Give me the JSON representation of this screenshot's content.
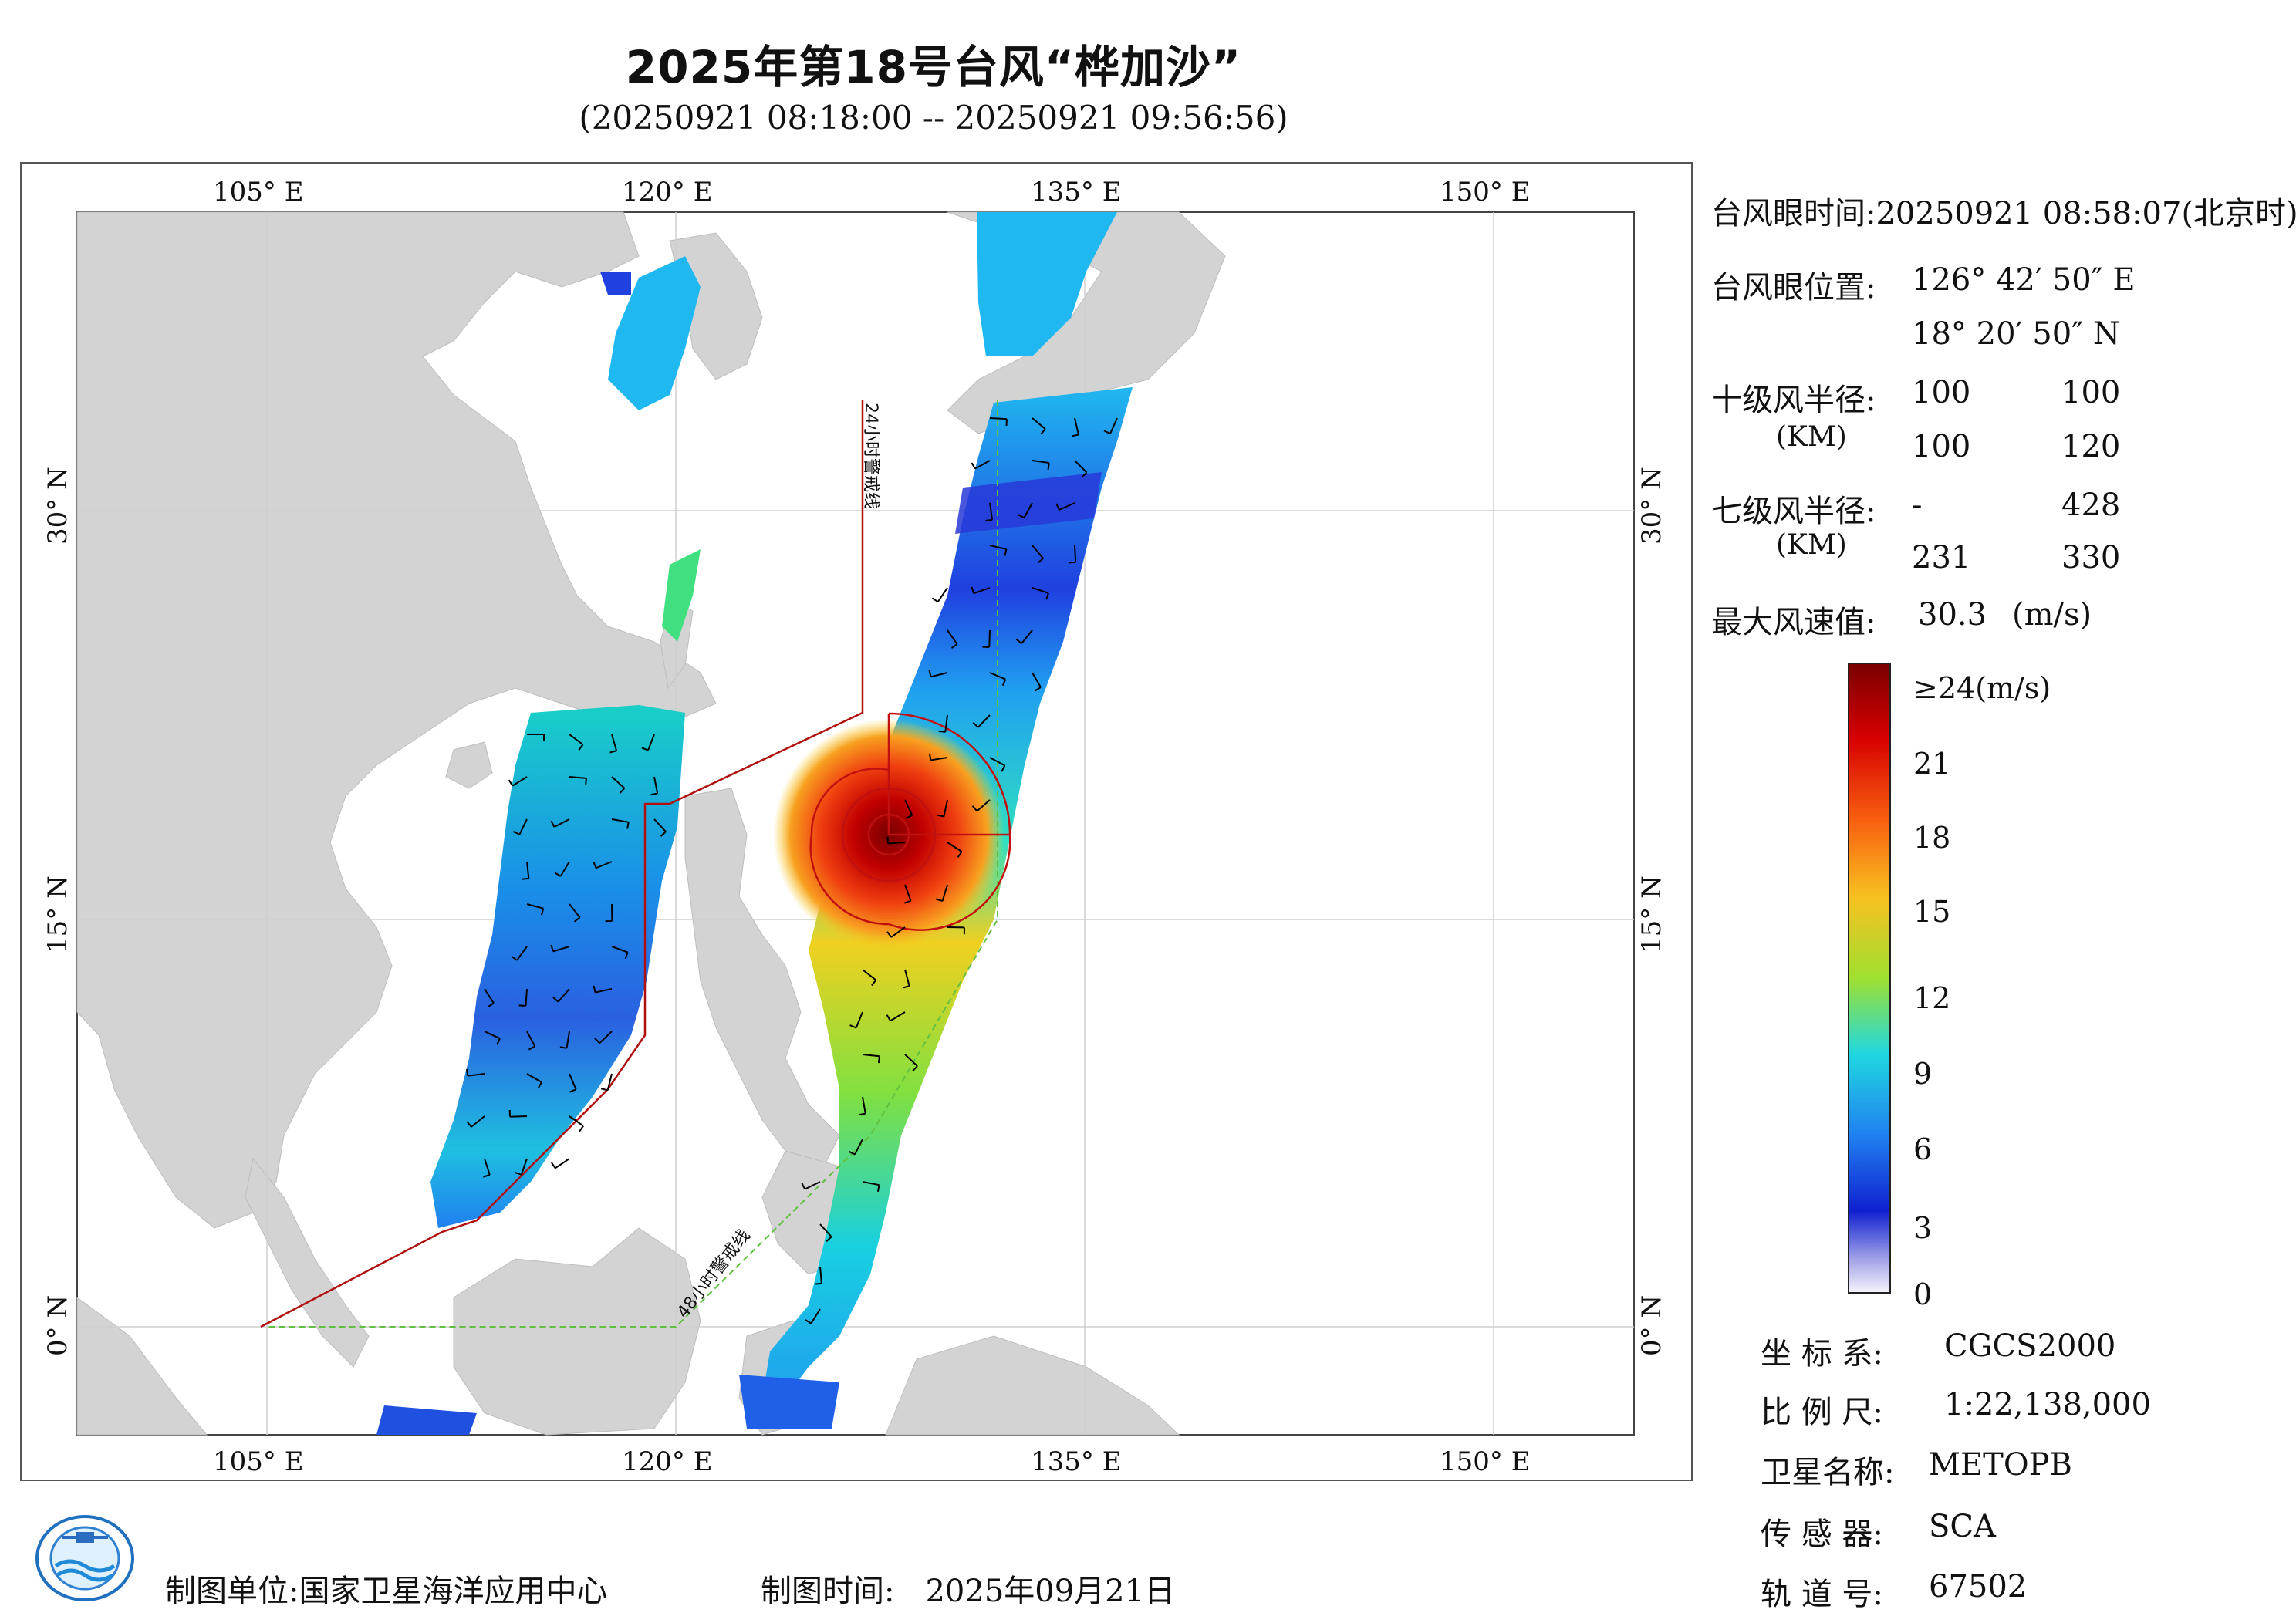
{
  "header": {
    "title": "2025年第18号台风“桦加沙”",
    "subtitle": "(20250921 08:18:00 -- 20250921 09:56:56)"
  },
  "map": {
    "lon_top_labels": [
      "105° E",
      "120° E",
      "135° E",
      "150° E"
    ],
    "lon_bottom_labels": [
      "105° E",
      "120° E",
      "135° E",
      "150° E"
    ],
    "lat_left_labels": [
      "30° N",
      "15° N",
      "0° N"
    ],
    "lat_right_labels": [
      "30° N",
      "15° N",
      "0° N"
    ],
    "line_24h_label": "24小时警戒线",
    "line_48h_label": "48小时警戒线",
    "land_color": "#d3d3d3",
    "ocean_color": "#ffffff"
  },
  "info": {
    "eye_time_label": "台风眼时间:",
    "eye_time_value": "20250921 08:58:07(北京时)",
    "eye_pos_label": "台风眼位置:",
    "eye_lon": "126° 42′ 50″ E",
    "eye_lat": "18° 20′ 50″ N",
    "r10_label": "十级风半径:",
    "r10_unit": "(KM)",
    "r10_values": [
      "100",
      "100",
      "100",
      "120"
    ],
    "r7_label": "七级风半径:",
    "r7_unit": "(KM)",
    "r7_values": [
      "-",
      "428",
      "231",
      "330"
    ],
    "max_wind_label": "最大风速值:",
    "max_wind_value": "30.3",
    "max_wind_unit": "(m/s)"
  },
  "legend": {
    "top_label": "≥24(m/s)",
    "labels": [
      "21",
      "18",
      "15",
      "12",
      "9",
      "6",
      "3",
      "0"
    ],
    "values": [
      21,
      18,
      15,
      12,
      9,
      6,
      3,
      0
    ],
    "max": 24
  },
  "meta": {
    "crs_label": "坐 标 系:",
    "crs_value": "CGCS2000",
    "scale_label": "比 例 尺:",
    "scale_value": "1:22,138,000",
    "sat_label": "卫星名称:",
    "sat_value": "METOPB",
    "sensor_label": "传 感 器:",
    "sensor_value": "SCA",
    "orbit_label": "轨 道 号:",
    "orbit_value": "67502"
  },
  "footer": {
    "org_label": "制图单位:",
    "org_value": "国家卫星海洋应用中心",
    "date_label": "制图时间:",
    "date_value": "2025年09月21日"
  }
}
